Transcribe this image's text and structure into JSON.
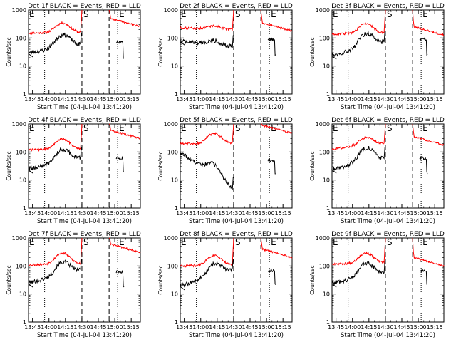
{
  "chart_data": {
    "type": "line",
    "layout": "3x3 grid",
    "xlabel": "Start Time (04-Jul-04 13:41:20)",
    "ylabel": "Counts/sec",
    "yscale": "log",
    "ylim": [
      1,
      1000
    ],
    "y_ticks": [
      "1",
      "10",
      "100",
      "1000"
    ],
    "x_ticks": [
      "13:45",
      "14:00",
      "14:15",
      "14:30",
      "14:45",
      "15:00",
      "15:15"
    ],
    "x_tick_minutes": [
      3.67,
      18.67,
      33.67,
      48.67,
      63.67,
      78.67,
      93.67
    ],
    "xlim_minutes": [
      0,
      102
    ],
    "series_colors": {
      "events": "#000000",
      "lld": "#ff0000"
    },
    "vertical_lines": [
      {
        "label": "",
        "style": "dotted",
        "x_minute": 14.7
      },
      {
        "label": "S",
        "style": "dashed",
        "x_minute": 48.7
      },
      {
        "label": "",
        "style": "dashed",
        "x_minute": 73.5
      },
      {
        "label": "E",
        "style": "dotted",
        "x_minute": 81.3
      }
    ],
    "left_marker": "E",
    "panels": [
      {
        "title": "Det 1f BLACK = Events, RED = LLD",
        "lld": {
          "base": 150,
          "hump": 2.2,
          "end": 160,
          "post": 500
        },
        "events": {
          "base": 30,
          "hump": 2.8,
          "end": 60,
          "post": 70
        }
      },
      {
        "title": "Det 2f BLACK = Events, RED = LLD",
        "lld": {
          "base": 230,
          "hump": 1.3,
          "end": 200,
          "post": 350
        },
        "events": {
          "base": 80,
          "hump": 1.4,
          "end": 50,
          "post": 90
        }
      },
      {
        "title": "Det 3f BLACK = Events, RED = LLD",
        "lld": {
          "base": 140,
          "hump": 2.2,
          "end": 150,
          "post": 250
        },
        "events": {
          "base": 25,
          "hump": 3.0,
          "end": 70,
          "post": 90
        }
      },
      {
        "title": "Det 4f BLACK = Events, RED = LLD",
        "lld": {
          "base": 120,
          "hump": 2.3,
          "end": 130,
          "post": 600
        },
        "events": {
          "base": 25,
          "hump": 2.8,
          "end": 60,
          "post": 60
        }
      },
      {
        "title": "Det 5f BLACK = Events, RED = LLD",
        "lld": {
          "base": 200,
          "hump": 2.3,
          "end": 200,
          "post": 900
        },
        "events": {
          "base": 100,
          "hump": 2.6,
          "end": 5,
          "post": 50
        }
      },
      {
        "title": "Det 6f BLACK = Events, RED = LLD",
        "lld": {
          "base": 130,
          "hump": 1.9,
          "end": 200,
          "post": 350
        },
        "events": {
          "base": 25,
          "hump": 3.2,
          "end": 60,
          "post": 60
        }
      },
      {
        "title": "Det 7f BLACK = Events, RED = LLD",
        "lld": {
          "base": 110,
          "hump": 2.5,
          "end": 120,
          "post": 600
        },
        "events": {
          "base": 25,
          "hump": 2.8,
          "end": 70,
          "post": 60
        }
      },
      {
        "title": "Det 8f BLACK = Events, RED = LLD",
        "lld": {
          "base": 100,
          "hump": 2.2,
          "end": 110,
          "post": 400
        },
        "events": {
          "base": 20,
          "hump": 2.7,
          "end": 70,
          "post": 70
        }
      },
      {
        "title": "Det 9f BLACK = Events, RED = LLD",
        "lld": {
          "base": 120,
          "hump": 2.3,
          "end": 130,
          "post": 200
        },
        "events": {
          "base": 25,
          "hump": 2.8,
          "end": 60,
          "post": 70
        }
      }
    ]
  }
}
